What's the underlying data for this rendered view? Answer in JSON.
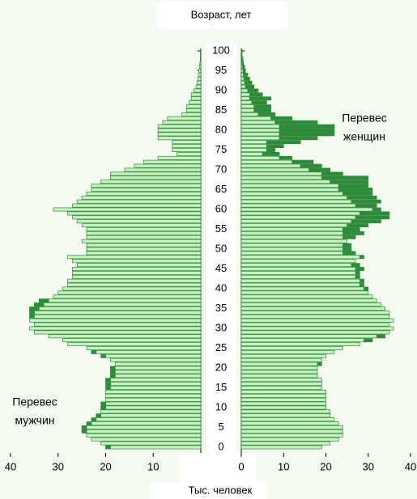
{
  "chart_data": {
    "type": "pyramid",
    "title": "Возраст, лет",
    "xlabel": "Тыс. человек",
    "annotations": [
      {
        "lines": [
          "Перевес",
          "женщин"
        ],
        "side": "right"
      },
      {
        "lines": [
          "Перевес",
          "мужчин"
        ],
        "side": "left"
      }
    ],
    "categories": [
      0,
      1,
      2,
      3,
      4,
      5,
      6,
      7,
      8,
      9,
      10,
      11,
      12,
      13,
      14,
      15,
      16,
      17,
      18,
      19,
      20,
      21,
      22,
      23,
      24,
      25,
      26,
      27,
      28,
      29,
      30,
      31,
      32,
      33,
      34,
      35,
      36,
      37,
      38,
      39,
      40,
      41,
      42,
      43,
      44,
      45,
      46,
      47,
      48,
      49,
      50,
      51,
      52,
      53,
      54,
      55,
      56,
      57,
      58,
      59,
      60,
      61,
      62,
      63,
      64,
      65,
      66,
      67,
      68,
      69,
      70,
      71,
      72,
      73,
      74,
      75,
      76,
      77,
      78,
      79,
      80,
      81,
      82,
      83,
      84,
      85,
      86,
      87,
      88,
      89,
      90,
      91,
      92,
      93,
      94,
      95,
      96,
      97,
      98,
      99,
      100
    ],
    "yticks": [
      0,
      5,
      10,
      15,
      20,
      25,
      30,
      35,
      40,
      45,
      50,
      55,
      60,
      65,
      70,
      75,
      80,
      85,
      90,
      95,
      100
    ],
    "ylim": [
      0,
      100
    ],
    "series": [
      {
        "side": "left",
        "color": "#c9f2c2",
        "excess_color": "#2e8b3a",
        "values": [
          20,
          21,
          23,
          24,
          25,
          25,
          24,
          23,
          22,
          21,
          21,
          21,
          20,
          20,
          20,
          20,
          20,
          20,
          19,
          19,
          19,
          18,
          19,
          21,
          23,
          24,
          28,
          29,
          32,
          35,
          36,
          35,
          36,
          36,
          36,
          36,
          35,
          34,
          31,
          30,
          29,
          28,
          28,
          27,
          27,
          27,
          26,
          27,
          28,
          24,
          24,
          24,
          25,
          24,
          24,
          24,
          25,
          26,
          27,
          28,
          31,
          27,
          26,
          25,
          24,
          23,
          23,
          21,
          19,
          19,
          16,
          14,
          12,
          9,
          5,
          6,
          6,
          6,
          9,
          9,
          9,
          9,
          8,
          7,
          4,
          3,
          3,
          2.5,
          2,
          2,
          1.5,
          1,
          0.8,
          0.6,
          0.5,
          0.4,
          0.3,
          0.2,
          0.1,
          0.1,
          0.1
        ]
      },
      {
        "side": "right",
        "color": "#c9f2c2",
        "excess_color": "#2e8b3a",
        "values": [
          19,
          21,
          23,
          24,
          24,
          24,
          23,
          22,
          21,
          21,
          20,
          20,
          20,
          20,
          20,
          19,
          19,
          19,
          18,
          18,
          18,
          19,
          19,
          20,
          22,
          24,
          28,
          31,
          34,
          35,
          36,
          35,
          36,
          35,
          35,
          34,
          33,
          32,
          31,
          30,
          30,
          29,
          29,
          28,
          28,
          29,
          28,
          27,
          29,
          27,
          26,
          26,
          25,
          27,
          29,
          28,
          30,
          33,
          35,
          35,
          33,
          32,
          33,
          32,
          31,
          31,
          30,
          30,
          30,
          24,
          21,
          19,
          17,
          12,
          9,
          8,
          10,
          14,
          18,
          22,
          22,
          22,
          18,
          12,
          8,
          7,
          7,
          6,
          7,
          5,
          4,
          3,
          2.5,
          2,
          1.5,
          1,
          0.8,
          0.5,
          0.4,
          0.2,
          0.2
        ]
      }
    ],
    "xlim_left": [
      0,
      40
    ],
    "xticks_left": [
      40,
      30,
      20,
      10
    ],
    "xlim_right": [
      0,
      40
    ],
    "xticks_right": [
      0,
      10,
      20,
      30,
      40
    ]
  }
}
